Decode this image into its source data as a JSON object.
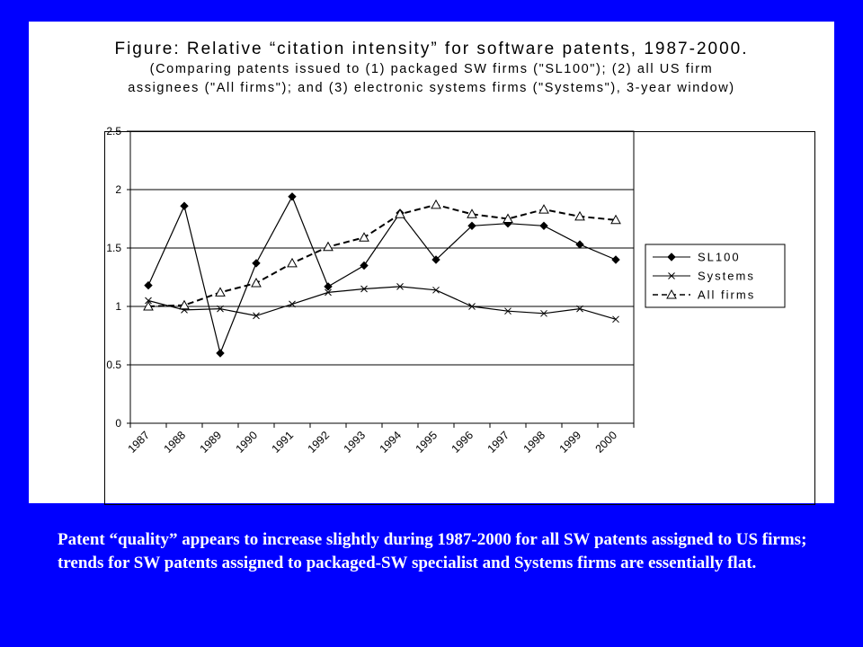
{
  "chart_data": {
    "type": "line",
    "title": "Figure:  Relative “citation intensity” for software patents, 1987-2000.",
    "subtitle_lines": [
      "(Comparing patents issued to (1) packaged SW firms (\"SL100\"); (2) all US firm",
      "assignees (\"All firms\"); and (3) electronic systems firms (\"Systems\"),  3-year window)"
    ],
    "categories": [
      "1987",
      "1988",
      "1989",
      "1990",
      "1991",
      "1992",
      "1993",
      "1994",
      "1995",
      "1996",
      "1997",
      "1998",
      "1999",
      "2000"
    ],
    "ylim": [
      0,
      2.5
    ],
    "yticks": [
      "0",
      "0.5",
      "1",
      "1.5",
      "2",
      "2.5"
    ],
    "grid": true,
    "legend_position": "right",
    "series": [
      {
        "name": "SL100",
        "marker": "diamond",
        "line": "solid",
        "values": [
          1.18,
          1.86,
          0.6,
          1.37,
          1.94,
          1.17,
          1.35,
          1.8,
          1.4,
          1.69,
          1.71,
          1.69,
          1.53,
          1.4
        ]
      },
      {
        "name": "Systems",
        "marker": "x",
        "line": "solid",
        "values": [
          1.05,
          0.97,
          0.98,
          0.92,
          1.02,
          1.12,
          1.15,
          1.17,
          1.14,
          1.0,
          0.96,
          0.94,
          0.98,
          0.89
        ]
      },
      {
        "name": "All firms",
        "marker": "triangle",
        "line": "dashed",
        "values": [
          1.0,
          1.01,
          1.12,
          1.2,
          1.37,
          1.51,
          1.59,
          1.79,
          1.87,
          1.79,
          1.75,
          1.83,
          1.77,
          1.74
        ]
      }
    ]
  },
  "caption": "Patent “quality” appears to increase slightly during 1987-2000 for all SW patents assigned to US firms; trends for SW patents assigned to packaged-SW specialist and Systems firms are essentially flat.",
  "colors": {
    "background": "#0000FF",
    "panel": "#FFFFFF",
    "ink": "#000000",
    "caption": "#FFFFFF"
  }
}
